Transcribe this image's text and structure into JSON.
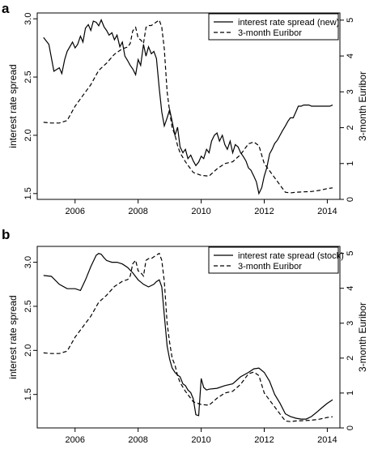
{
  "chart_data": [
    {
      "panel_label": "a",
      "type": "line",
      "ylabel": "interest rate spread",
      "y2label": "3-month Euribor",
      "xlim": [
        2004.8,
        2014.4
      ],
      "ylim": [
        1.45,
        3.05
      ],
      "y2lim": [
        0,
        5.2
      ],
      "xticks": [
        2006,
        2008,
        2010,
        2012,
        2014
      ],
      "yticks": [
        1.5,
        2.0,
        2.5,
        3.0
      ],
      "y2ticks": [
        0,
        1,
        2,
        3,
        4,
        5
      ],
      "xtick_labels": [
        "2006",
        "2008",
        "2010",
        "2012",
        "2014"
      ],
      "ytick_labels": [
        "1.5",
        "2.0",
        "2.5",
        "3.0"
      ],
      "y2tick_labels": [
        "0",
        "1",
        "2",
        "3",
        "4",
        "5"
      ],
      "legend_position": "top-right",
      "series": [
        {
          "name": "interest rate spread (new)",
          "axis": "left",
          "style": "solid",
          "x": [
            2005.0,
            2005.17,
            2005.33,
            2005.5,
            2005.58,
            2005.67,
            2005.75,
            2005.92,
            2006.0,
            2006.08,
            2006.17,
            2006.25,
            2006.33,
            2006.42,
            2006.5,
            2006.58,
            2006.67,
            2006.75,
            2006.83,
            2006.92,
            2007.0,
            2007.08,
            2007.17,
            2007.25,
            2007.33,
            2007.42,
            2007.5,
            2007.58,
            2007.67,
            2007.75,
            2007.83,
            2007.92,
            2008.0,
            2008.08,
            2008.17,
            2008.25,
            2008.33,
            2008.42,
            2008.5,
            2008.58,
            2008.67,
            2008.75,
            2008.83,
            2008.92,
            2009.0,
            2009.08,
            2009.17,
            2009.25,
            2009.33,
            2009.42,
            2009.5,
            2009.58,
            2009.67,
            2009.75,
            2009.83,
            2009.92,
            2010.0,
            2010.08,
            2010.17,
            2010.25,
            2010.33,
            2010.42,
            2010.5,
            2010.58,
            2010.67,
            2010.75,
            2010.83,
            2010.92,
            2011.0,
            2011.08,
            2011.17,
            2011.25,
            2011.33,
            2011.42,
            2011.5,
            2011.58,
            2011.67,
            2011.75,
            2011.83,
            2011.92,
            2012.0,
            2012.08,
            2012.17,
            2012.25,
            2012.33,
            2012.42,
            2012.5,
            2012.58,
            2012.67,
            2012.75,
            2012.83,
            2012.92,
            2013.0,
            2013.08,
            2013.17,
            2013.25,
            2013.33,
            2013.42,
            2013.5,
            2013.58,
            2013.67,
            2013.75,
            2013.83,
            2013.92,
            2014.0,
            2014.08,
            2014.17
          ],
          "y": [
            2.84,
            2.78,
            2.55,
            2.58,
            2.53,
            2.65,
            2.72,
            2.8,
            2.75,
            2.78,
            2.85,
            2.8,
            2.92,
            2.95,
            2.9,
            2.98,
            2.97,
            2.94,
            2.99,
            2.93,
            2.9,
            2.86,
            2.88,
            2.82,
            2.86,
            2.76,
            2.8,
            2.68,
            2.64,
            2.6,
            2.57,
            2.52,
            2.65,
            2.6,
            2.78,
            2.68,
            2.76,
            2.7,
            2.72,
            2.66,
            2.4,
            2.2,
            2.08,
            2.15,
            2.22,
            2.12,
            2.0,
            2.07,
            1.9,
            1.85,
            1.88,
            1.8,
            1.83,
            1.78,
            1.74,
            1.77,
            1.82,
            1.8,
            1.88,
            1.85,
            1.95,
            2.0,
            2.02,
            1.95,
            2.0,
            1.92,
            1.88,
            1.95,
            1.85,
            1.92,
            1.9,
            1.85,
            1.82,
            1.78,
            1.72,
            1.7,
            1.65,
            1.6,
            1.5,
            1.55,
            1.65,
            1.72,
            1.84,
            1.88,
            1.93,
            1.96,
            2.0,
            2.04,
            2.08,
            2.12,
            2.15,
            2.15,
            2.2,
            2.25,
            2.25,
            2.26,
            2.26,
            2.26,
            2.25,
            2.25,
            2.25,
            2.25,
            2.25,
            2.25,
            2.25,
            2.25,
            2.26
          ]
        },
        {
          "name": "3-month Euribor",
          "axis": "right",
          "style": "dashed",
          "x": [
            2005.0,
            2005.25,
            2005.5,
            2005.75,
            2006.0,
            2006.25,
            2006.5,
            2006.75,
            2007.0,
            2007.25,
            2007.5,
            2007.67,
            2007.75,
            2007.83,
            2007.92,
            2008.0,
            2008.08,
            2008.17,
            2008.25,
            2008.33,
            2008.42,
            2008.5,
            2008.58,
            2008.67,
            2008.75,
            2008.83,
            2008.92,
            2009.0,
            2009.08,
            2009.17,
            2009.25,
            2009.33,
            2009.5,
            2009.75,
            2010.0,
            2010.25,
            2010.5,
            2010.75,
            2011.0,
            2011.25,
            2011.5,
            2011.67,
            2011.83,
            2012.0,
            2012.25,
            2012.5,
            2012.67,
            2012.83,
            2013.0,
            2013.25,
            2013.5,
            2013.75,
            2014.0,
            2014.17
          ],
          "y": [
            2.15,
            2.13,
            2.13,
            2.2,
            2.6,
            2.9,
            3.2,
            3.6,
            3.8,
            4.05,
            4.2,
            4.25,
            4.35,
            4.7,
            4.8,
            4.5,
            4.45,
            4.35,
            4.8,
            4.85,
            4.85,
            4.9,
            4.95,
            5.0,
            4.8,
            4.2,
            3.0,
            2.45,
            2.0,
            1.8,
            1.5,
            1.3,
            1.05,
            0.75,
            0.67,
            0.65,
            0.85,
            1.0,
            1.05,
            1.25,
            1.55,
            1.6,
            1.5,
            1.0,
            0.7,
            0.4,
            0.2,
            0.18,
            0.2,
            0.21,
            0.22,
            0.25,
            0.3,
            0.32
          ]
        }
      ]
    },
    {
      "panel_label": "b",
      "type": "line",
      "ylabel": "interest rate spread",
      "y2label": "3-month Euribor",
      "xlim": [
        2004.8,
        2014.4
      ],
      "ylim": [
        1.12,
        3.18
      ],
      "y2lim": [
        0,
        5.2
      ],
      "xticks": [
        2006,
        2008,
        2010,
        2012,
        2014
      ],
      "yticks": [
        1.5,
        2.0,
        2.5,
        3.0
      ],
      "y2ticks": [
        0,
        1,
        2,
        3,
        4,
        5
      ],
      "xtick_labels": [
        "2006",
        "2008",
        "2010",
        "2012",
        "2014"
      ],
      "ytick_labels": [
        "1.5",
        "2.0",
        "2.5",
        "3.0"
      ],
      "y2tick_labels": [
        "0",
        "1",
        "2",
        "3",
        "4",
        "5"
      ],
      "legend_position": "top-right",
      "series": [
        {
          "name": "interest rate spread (stock)",
          "axis": "left",
          "style": "solid",
          "x": [
            2005.0,
            2005.25,
            2005.5,
            2005.75,
            2006.0,
            2006.17,
            2006.33,
            2006.5,
            2006.67,
            2006.75,
            2006.83,
            2006.92,
            2007.0,
            2007.17,
            2007.33,
            2007.5,
            2007.67,
            2007.83,
            2008.0,
            2008.17,
            2008.33,
            2008.5,
            2008.58,
            2008.67,
            2008.75,
            2008.83,
            2008.92,
            2009.0,
            2009.08,
            2009.17,
            2009.25,
            2009.33,
            2009.42,
            2009.5,
            2009.58,
            2009.67,
            2009.75,
            2009.83,
            2009.92,
            2010.0,
            2010.08,
            2010.17,
            2010.25,
            2010.5,
            2010.75,
            2011.0,
            2011.25,
            2011.5,
            2011.67,
            2011.83,
            2012.0,
            2012.17,
            2012.33,
            2012.5,
            2012.67,
            2012.83,
            2013.0,
            2013.17,
            2013.33,
            2013.5,
            2013.67,
            2013.83,
            2014.0,
            2014.17
          ],
          "y": [
            2.85,
            2.84,
            2.75,
            2.7,
            2.7,
            2.68,
            2.8,
            2.95,
            3.08,
            3.1,
            3.09,
            3.05,
            3.02,
            3.0,
            3.0,
            2.98,
            2.94,
            2.88,
            2.8,
            2.75,
            2.72,
            2.75,
            2.78,
            2.8,
            2.72,
            2.4,
            2.05,
            1.9,
            1.8,
            1.75,
            1.72,
            1.7,
            1.62,
            1.6,
            1.55,
            1.52,
            1.45,
            1.27,
            1.26,
            1.68,
            1.58,
            1.55,
            1.56,
            1.57,
            1.6,
            1.62,
            1.7,
            1.75,
            1.79,
            1.8,
            1.75,
            1.65,
            1.5,
            1.4,
            1.28,
            1.25,
            1.23,
            1.22,
            1.22,
            1.25,
            1.3,
            1.35,
            1.4,
            1.44
          ]
        },
        {
          "name": "3-month Euribor",
          "axis": "right",
          "style": "dashed",
          "x": [
            2005.0,
            2005.25,
            2005.5,
            2005.75,
            2006.0,
            2006.25,
            2006.5,
            2006.75,
            2007.0,
            2007.25,
            2007.5,
            2007.67,
            2007.75,
            2007.83,
            2007.92,
            2008.0,
            2008.08,
            2008.17,
            2008.25,
            2008.33,
            2008.42,
            2008.5,
            2008.58,
            2008.67,
            2008.75,
            2008.83,
            2008.92,
            2009.0,
            2009.08,
            2009.17,
            2009.25,
            2009.33,
            2009.5,
            2009.75,
            2010.0,
            2010.25,
            2010.5,
            2010.75,
            2011.0,
            2011.25,
            2011.5,
            2011.67,
            2011.83,
            2012.0,
            2012.25,
            2012.5,
            2012.67,
            2012.83,
            2013.0,
            2013.25,
            2013.5,
            2013.75,
            2014.0,
            2014.17
          ],
          "y": [
            2.15,
            2.13,
            2.13,
            2.2,
            2.6,
            2.9,
            3.2,
            3.6,
            3.8,
            4.05,
            4.2,
            4.25,
            4.35,
            4.7,
            4.8,
            4.5,
            4.45,
            4.35,
            4.8,
            4.85,
            4.85,
            4.9,
            4.95,
            5.0,
            4.8,
            4.2,
            3.0,
            2.45,
            2.0,
            1.8,
            1.5,
            1.3,
            1.05,
            0.75,
            0.67,
            0.65,
            0.85,
            1.0,
            1.05,
            1.25,
            1.55,
            1.6,
            1.5,
            1.0,
            0.7,
            0.4,
            0.2,
            0.18,
            0.2,
            0.21,
            0.22,
            0.25,
            0.3,
            0.32
          ]
        }
      ]
    }
  ]
}
